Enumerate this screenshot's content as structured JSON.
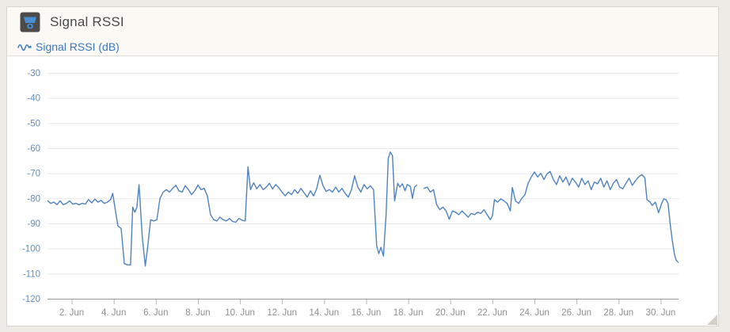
{
  "panel": {
    "title": "Signal RSSI",
    "icon": "device-icon",
    "legend": {
      "label": "Signal RSSI (dB)",
      "marker_icon": "line-series-icon"
    }
  },
  "colors": {
    "page_background": "#edebe5",
    "panel_background": "#ffffff",
    "header_background": "#faf9f4",
    "panel_border": "#d8d6cf",
    "title_text": "#4a4a4a",
    "legend_text": "#3a79bd",
    "series_line": "#4f82c0",
    "y_label": "#5b8fc8",
    "x_label": "#8f8f8f",
    "gridline": "#e7e7e7",
    "axis_line": "#9a9a9a",
    "tick_mark": "#b5b5b5",
    "icon_background": "#4b4b49",
    "icon_glyph": "#4a8fd6"
  },
  "chart_data": {
    "type": "line",
    "title": "Signal RSSI",
    "xlabel": "",
    "ylabel": "",
    "x_unit": "day of June (decimal)",
    "y_unit": "dB",
    "xlim": [
      0.85,
      30.85
    ],
    "ylim": [
      -120,
      -30
    ],
    "grid": true,
    "legend_position": "top-left",
    "yticks": [
      -30,
      -40,
      -50,
      -60,
      -70,
      -80,
      -90,
      -100,
      -110,
      -120
    ],
    "xticks": [
      2,
      4,
      6,
      8,
      10,
      12,
      14,
      16,
      18,
      20,
      22,
      24,
      26,
      28,
      30
    ],
    "xtick_labels": [
      "2. Jun",
      "4. Jun",
      "6. Jun",
      "8. Jun",
      "10. Jun",
      "12. Jun",
      "14. Jun",
      "16. Jun",
      "18. Jun",
      "20. Jun",
      "22. Jun",
      "24. Jun",
      "26. Jun",
      "28. Jun",
      "30. Jun"
    ],
    "note": "data gap near June 18.4-18.7; null y value marks the gap",
    "series": [
      {
        "name": "Signal RSSI (dB)",
        "color": "#4f82c0",
        "points": [
          [
            0.87,
            -81
          ],
          [
            1.0,
            -82
          ],
          [
            1.15,
            -81.5
          ],
          [
            1.3,
            -82.5
          ],
          [
            1.45,
            -81
          ],
          [
            1.6,
            -82.5
          ],
          [
            1.75,
            -82
          ],
          [
            1.9,
            -81
          ],
          [
            2.05,
            -82.3
          ],
          [
            2.2,
            -82
          ],
          [
            2.35,
            -82.5
          ],
          [
            2.5,
            -82
          ],
          [
            2.65,
            -82.3
          ],
          [
            2.8,
            -80.5
          ],
          [
            2.95,
            -81.8
          ],
          [
            3.1,
            -80.3
          ],
          [
            3.25,
            -81.5
          ],
          [
            3.4,
            -80.8
          ],
          [
            3.55,
            -82
          ],
          [
            3.7,
            -81.5
          ],
          [
            3.85,
            -80.5
          ],
          [
            3.95,
            -78
          ],
          [
            4.1,
            -86
          ],
          [
            4.2,
            -91
          ],
          [
            4.35,
            -92
          ],
          [
            4.5,
            -106
          ],
          [
            4.65,
            -106.5
          ],
          [
            4.8,
            -106.5
          ],
          [
            4.9,
            -83.5
          ],
          [
            5.0,
            -85.5
          ],
          [
            5.1,
            -83.5
          ],
          [
            5.2,
            -74.5
          ],
          [
            5.35,
            -95
          ],
          [
            5.5,
            -107
          ],
          [
            5.62,
            -99
          ],
          [
            5.75,
            -88.5
          ],
          [
            5.9,
            -89
          ],
          [
            6.05,
            -88.5
          ],
          [
            6.2,
            -80
          ],
          [
            6.35,
            -77.5
          ],
          [
            6.5,
            -76.5
          ],
          [
            6.65,
            -77.5
          ],
          [
            6.8,
            -76
          ],
          [
            6.95,
            -74.8
          ],
          [
            7.1,
            -77
          ],
          [
            7.25,
            -77.5
          ],
          [
            7.4,
            -75
          ],
          [
            7.55,
            -76.5
          ],
          [
            7.7,
            -78.5
          ],
          [
            7.85,
            -77
          ],
          [
            8.0,
            -74.7
          ],
          [
            8.15,
            -76.5
          ],
          [
            8.3,
            -76
          ],
          [
            8.45,
            -79
          ],
          [
            8.6,
            -86.5
          ],
          [
            8.75,
            -88.5
          ],
          [
            8.9,
            -89
          ],
          [
            9.05,
            -87.5
          ],
          [
            9.2,
            -88.5
          ],
          [
            9.35,
            -89
          ],
          [
            9.5,
            -88
          ],
          [
            9.65,
            -89.2
          ],
          [
            9.8,
            -89.5
          ],
          [
            9.95,
            -88
          ],
          [
            10.1,
            -88.7
          ],
          [
            10.25,
            -89
          ],
          [
            10.38,
            -67.4
          ],
          [
            10.5,
            -76.5
          ],
          [
            10.65,
            -73.8
          ],
          [
            10.8,
            -76.2
          ],
          [
            10.95,
            -74.5
          ],
          [
            11.1,
            -76.5
          ],
          [
            11.25,
            -75.5
          ],
          [
            11.4,
            -74
          ],
          [
            11.55,
            -76.3
          ],
          [
            11.7,
            -74.5
          ],
          [
            11.85,
            -75.8
          ],
          [
            12.0,
            -77.5
          ],
          [
            12.15,
            -79
          ],
          [
            12.3,
            -77.5
          ],
          [
            12.45,
            -78.5
          ],
          [
            12.6,
            -76.5
          ],
          [
            12.75,
            -78
          ],
          [
            12.9,
            -76
          ],
          [
            13.05,
            -77.8
          ],
          [
            13.2,
            -79.5
          ],
          [
            13.35,
            -77
          ],
          [
            13.5,
            -79
          ],
          [
            13.65,
            -76
          ],
          [
            13.8,
            -70.8
          ],
          [
            13.95,
            -75
          ],
          [
            14.1,
            -77.2
          ],
          [
            14.25,
            -76.5
          ],
          [
            14.4,
            -77.5
          ],
          [
            14.55,
            -75.5
          ],
          [
            14.7,
            -77.5
          ],
          [
            14.85,
            -76
          ],
          [
            15.0,
            -78
          ],
          [
            15.15,
            -79.5
          ],
          [
            15.3,
            -76.5
          ],
          [
            15.45,
            -71
          ],
          [
            15.6,
            -75.5
          ],
          [
            15.75,
            -77.5
          ],
          [
            15.9,
            -74.5
          ],
          [
            16.05,
            -76.2
          ],
          [
            16.2,
            -75
          ],
          [
            16.35,
            -76.5
          ],
          [
            16.5,
            -99
          ],
          [
            16.6,
            -102
          ],
          [
            16.7,
            -99.5
          ],
          [
            16.82,
            -103
          ],
          [
            16.95,
            -86
          ],
          [
            17.05,
            -64
          ],
          [
            17.15,
            -61.5
          ],
          [
            17.25,
            -63
          ],
          [
            17.35,
            -81
          ],
          [
            17.5,
            -74
          ],
          [
            17.6,
            -75.5
          ],
          [
            17.72,
            -74.2
          ],
          [
            17.85,
            -77
          ],
          [
            17.95,
            -74.5
          ],
          [
            18.1,
            -75.2
          ],
          [
            18.2,
            -80
          ],
          [
            18.3,
            -75.5
          ],
          [
            18.4,
            -74.8
          ],
          [
            18.55,
            null
          ],
          [
            18.75,
            -76
          ],
          [
            18.9,
            -75.5
          ],
          [
            19.05,
            -77.5
          ],
          [
            19.2,
            -76.5
          ],
          [
            19.35,
            -82.5
          ],
          [
            19.5,
            -84.5
          ],
          [
            19.65,
            -83.5
          ],
          [
            19.8,
            -85
          ],
          [
            19.95,
            -88.3
          ],
          [
            20.1,
            -85
          ],
          [
            20.25,
            -85.5
          ],
          [
            20.4,
            -86.5
          ],
          [
            20.55,
            -85
          ],
          [
            20.7,
            -86.2
          ],
          [
            20.85,
            -87.5
          ],
          [
            21.0,
            -86
          ],
          [
            21.15,
            -86.5
          ],
          [
            21.3,
            -85.5
          ],
          [
            21.45,
            -86
          ],
          [
            21.6,
            -84.5
          ],
          [
            21.75,
            -86.5
          ],
          [
            21.9,
            -88.5
          ],
          [
            22.0,
            -87
          ],
          [
            22.1,
            -80.5
          ],
          [
            22.25,
            -81.5
          ],
          [
            22.4,
            -80.2
          ],
          [
            22.55,
            -81
          ],
          [
            22.7,
            -82
          ],
          [
            22.85,
            -85
          ],
          [
            22.95,
            -75.7
          ],
          [
            23.1,
            -81
          ],
          [
            23.25,
            -82
          ],
          [
            23.4,
            -80
          ],
          [
            23.55,
            -78.5
          ],
          [
            23.7,
            -74
          ],
          [
            23.85,
            -71.5
          ],
          [
            24.0,
            -69.5
          ],
          [
            24.15,
            -71.5
          ],
          [
            24.3,
            -70
          ],
          [
            24.45,
            -72.5
          ],
          [
            24.6,
            -70.2
          ],
          [
            24.75,
            -69.3
          ],
          [
            24.9,
            -72.5
          ],
          [
            25.05,
            -74.5
          ],
          [
            25.2,
            -71
          ],
          [
            25.35,
            -73.5
          ],
          [
            25.5,
            -71.5
          ],
          [
            25.65,
            -74.8
          ],
          [
            25.8,
            -72
          ],
          [
            25.95,
            -73.5
          ],
          [
            26.1,
            -75.5
          ],
          [
            26.25,
            -72
          ],
          [
            26.4,
            -74.5
          ],
          [
            26.55,
            -73
          ],
          [
            26.7,
            -76.5
          ],
          [
            26.85,
            -73.5
          ],
          [
            27.0,
            -74.2
          ],
          [
            27.15,
            -72
          ],
          [
            27.3,
            -75.5
          ],
          [
            27.45,
            -73
          ],
          [
            27.6,
            -76.5
          ],
          [
            27.75,
            -74
          ],
          [
            27.9,
            -72.5
          ],
          [
            28.05,
            -75.5
          ],
          [
            28.2,
            -76.2
          ],
          [
            28.35,
            -74
          ],
          [
            28.5,
            -72
          ],
          [
            28.65,
            -74.8
          ],
          [
            28.8,
            -73
          ],
          [
            28.95,
            -71.5
          ],
          [
            29.1,
            -70.5
          ],
          [
            29.25,
            -71.8
          ],
          [
            29.35,
            -80.5
          ],
          [
            29.5,
            -81.5
          ],
          [
            29.6,
            -82.8
          ],
          [
            29.75,
            -81.5
          ],
          [
            29.9,
            -85.7
          ],
          [
            30.05,
            -82
          ],
          [
            30.15,
            -80.2
          ],
          [
            30.25,
            -80.5
          ],
          [
            30.35,
            -82
          ],
          [
            30.45,
            -90
          ],
          [
            30.55,
            -96.5
          ],
          [
            30.65,
            -102
          ],
          [
            30.73,
            -104.5
          ],
          [
            30.83,
            -105.5
          ]
        ]
      }
    ]
  }
}
